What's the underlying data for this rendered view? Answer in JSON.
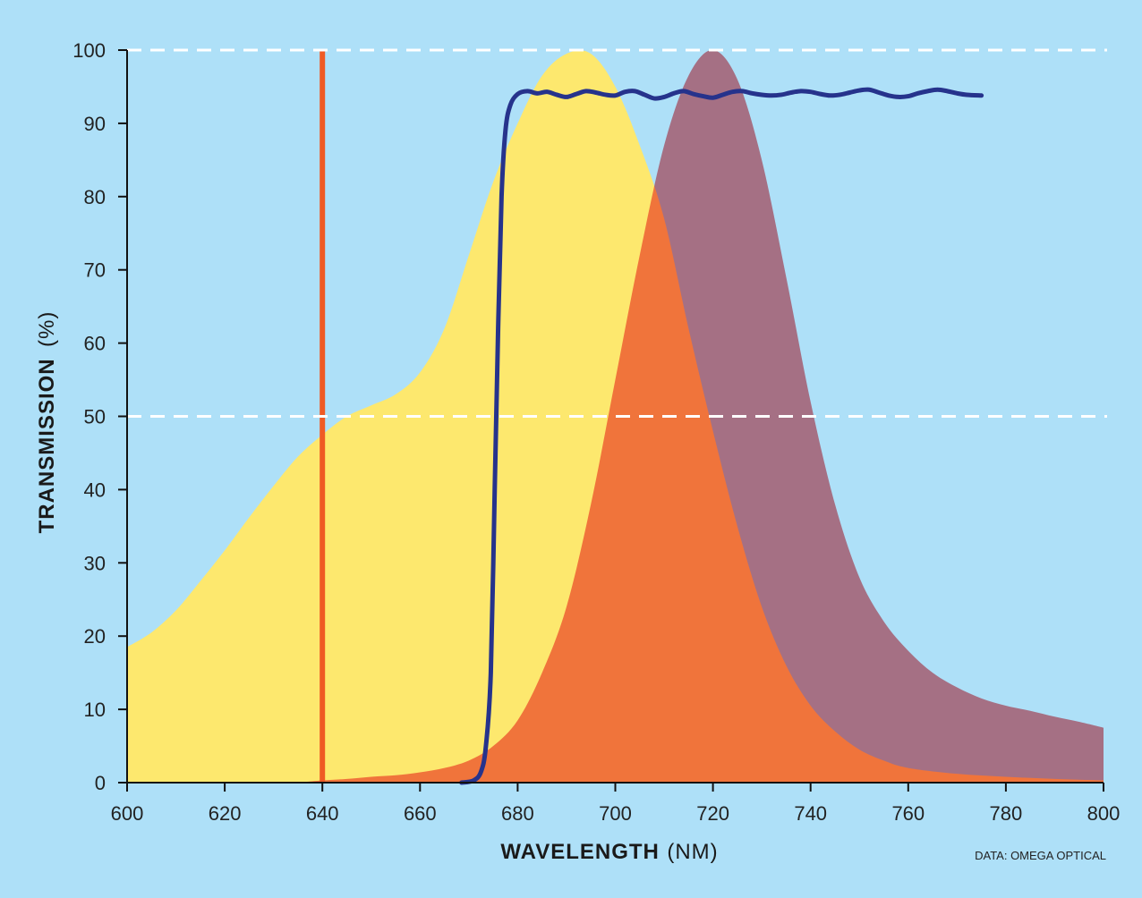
{
  "chart_data": {
    "type": "area",
    "x_axis": {
      "label_bold": "WAVELENGTH",
      "label_unit": "(NM)",
      "range": [
        600,
        800
      ],
      "ticks": [
        600,
        620,
        640,
        660,
        680,
        700,
        720,
        740,
        760,
        780,
        800
      ]
    },
    "y_axis": {
      "label_bold": "TRANSMISSION",
      "label_unit": "(%)",
      "range": [
        0,
        100
      ],
      "ticks": [
        0,
        10,
        20,
        30,
        40,
        50,
        60,
        70,
        80,
        90,
        100
      ]
    },
    "reference_lines": [
      {
        "axis": "y",
        "value": 100,
        "style": "dashed",
        "color": "#ffffff"
      },
      {
        "axis": "y",
        "value": 50,
        "style": "dashed",
        "color": "#ffffff"
      }
    ],
    "series": [
      {
        "kind": "area",
        "color": "#fde86e",
        "x": [
          600,
          605,
          610,
          615,
          620,
          625,
          630,
          635,
          640,
          645,
          650,
          655,
          660,
          665,
          670,
          675,
          680,
          685,
          690,
          695,
          700,
          705,
          710,
          715,
          720,
          725,
          730,
          735,
          740,
          745,
          750,
          755,
          760,
          770,
          780,
          790,
          800
        ],
        "y": [
          18.5,
          20.5,
          23.5,
          27.5,
          31.7,
          36.2,
          40.5,
          44.5,
          47.5,
          50.0,
          51.5,
          53.0,
          56.0,
          62.0,
          72.0,
          82.0,
          90.0,
          96.5,
          99.5,
          99.5,
          95.0,
          87.0,
          77.0,
          62.0,
          48.0,
          35.0,
          24.0,
          16.0,
          10.5,
          7.0,
          4.5,
          3.0,
          2.0,
          1.2,
          0.8,
          0.5,
          0.3
        ]
      },
      {
        "kind": "area",
        "color": "#f06e78",
        "x": [
          635,
          640,
          645,
          650,
          655,
          660,
          665,
          670,
          675,
          680,
          685,
          690,
          695,
          700,
          705,
          710,
          715,
          720,
          725,
          730,
          735,
          740,
          745,
          750,
          755,
          760,
          765,
          770,
          775,
          780,
          785,
          790,
          795,
          800
        ],
        "y": [
          0,
          0.3,
          0.5,
          0.8,
          1.0,
          1.4,
          2.0,
          3.0,
          5.0,
          8.5,
          15.0,
          24.0,
          38.0,
          55.0,
          72.0,
          87.0,
          96.5,
          100.0,
          96.0,
          85.0,
          69.0,
          52.0,
          38.0,
          28.0,
          22.0,
          18.0,
          15.0,
          13.0,
          11.5,
          10.5,
          9.8,
          9.0,
          8.3,
          7.5
        ]
      },
      {
        "kind": "line",
        "color": "#26338c",
        "x": [
          668.5,
          671,
          672.5,
          673.5,
          674.5,
          675.3,
          676.0,
          676.7,
          677.5,
          678.5,
          680,
          682,
          684,
          686,
          688,
          690,
          692,
          694,
          696,
          698,
          700,
          702,
          704,
          706,
          708,
          710,
          712,
          714,
          716,
          718,
          720,
          722,
          724,
          726,
          728,
          730,
          732,
          734,
          736,
          738,
          740,
          742,
          744,
          746,
          748,
          750,
          752,
          754,
          756,
          758,
          760,
          762,
          764,
          766,
          768,
          770,
          772,
          775
        ],
        "y": [
          0,
          0.3,
          1.5,
          5.0,
          15.0,
          40.0,
          62.0,
          80.0,
          89.0,
          92.5,
          94.0,
          94.4,
          94.1,
          94.3,
          93.9,
          93.6,
          94.0,
          94.4,
          94.2,
          93.9,
          93.8,
          94.3,
          94.4,
          93.9,
          93.4,
          93.6,
          94.1,
          94.4,
          94.0,
          93.7,
          93.5,
          93.9,
          94.3,
          94.4,
          94.1,
          93.9,
          93.8,
          93.9,
          94.2,
          94.4,
          94.3,
          94.0,
          93.8,
          93.9,
          94.2,
          94.5,
          94.6,
          94.2,
          93.8,
          93.6,
          93.7,
          94.1,
          94.4,
          94.6,
          94.4,
          94.1,
          93.9,
          93.8
        ]
      },
      {
        "kind": "vline",
        "color": "#ef5a24",
        "x": 640,
        "y_range": [
          0,
          100
        ]
      }
    ]
  },
  "credit": "DATA: OMEGA OPTICAL"
}
